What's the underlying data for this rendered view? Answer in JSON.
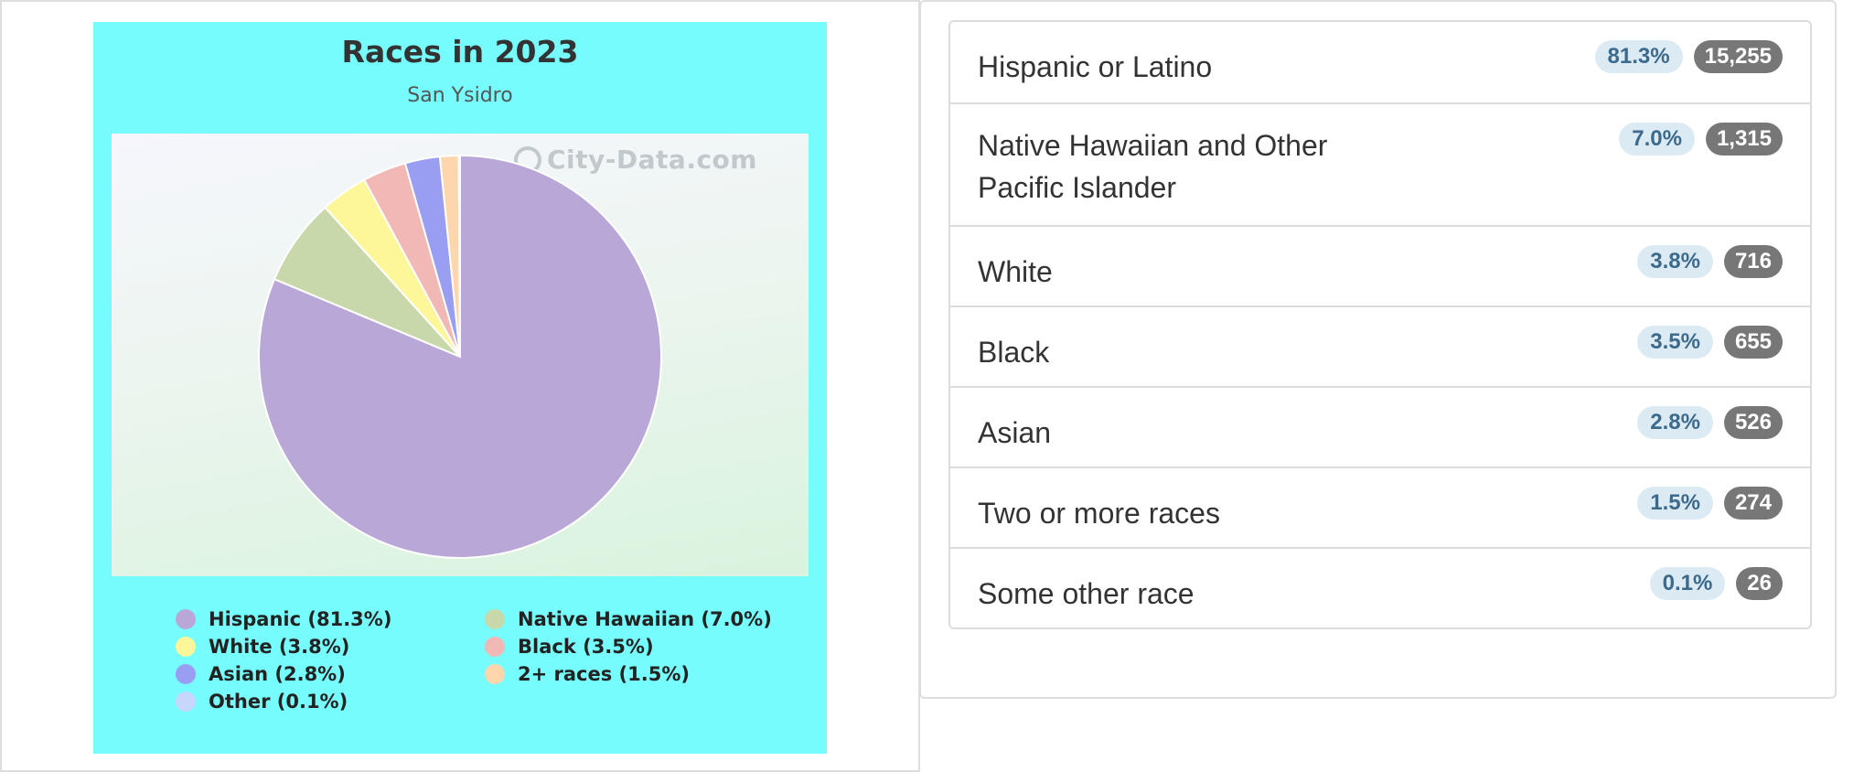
{
  "chart_data": {
    "type": "pie",
    "title": "Races in 2023",
    "subtitle": "San Ysidro",
    "watermark": "City-Data.com",
    "legend_placement": "bottom",
    "slices": [
      {
        "label": "Hispanic (81.3%)",
        "value": 81.3,
        "color": "#b9a7d8"
      },
      {
        "label": "Native Hawaiian (7.0%)",
        "value": 7.0,
        "color": "#c9d8ab"
      },
      {
        "label": "White (3.8%)",
        "value": 3.8,
        "color": "#fdf79a"
      },
      {
        "label": "Black (3.5%)",
        "value": 3.5,
        "color": "#f1b8b5"
      },
      {
        "label": "Asian (2.8%)",
        "value": 2.8,
        "color": "#9a9ef2"
      },
      {
        "label": "2+ races (1.5%)",
        "value": 1.5,
        "color": "#fdd6ae"
      },
      {
        "label": "Other (0.1%)",
        "value": 0.1,
        "color": "#c7d7fb"
      }
    ]
  },
  "table": {
    "rows": [
      {
        "label": "Hispanic or Latino",
        "percent": "81.3%",
        "count": "15,255"
      },
      {
        "label": "Native Hawaiian and Other Pacific Islander",
        "percent": "7.0%",
        "count": "1,315"
      },
      {
        "label": "White",
        "percent": "3.8%",
        "count": "716"
      },
      {
        "label": "Black",
        "percent": "3.5%",
        "count": "655"
      },
      {
        "label": "Asian",
        "percent": "2.8%",
        "count": "526"
      },
      {
        "label": "Two or more races",
        "percent": "1.5%",
        "count": "274"
      },
      {
        "label": "Some other race",
        "percent": "0.1%",
        "count": "26"
      }
    ]
  }
}
